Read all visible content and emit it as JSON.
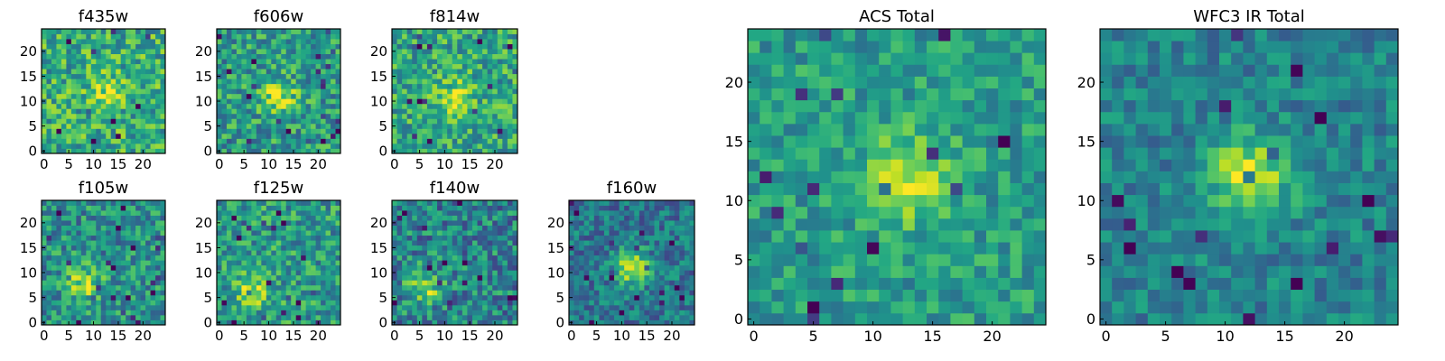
{
  "chart_data": [
    {
      "type": "heatmap",
      "title": "f435w",
      "x_ticks": [
        0,
        5,
        10,
        15,
        20
      ],
      "y_ticks": [
        0,
        5,
        10,
        15,
        20
      ],
      "xlim": [
        0,
        25
      ],
      "ylim": [
        0,
        25
      ],
      "grid_size": 25,
      "blob_center": [
        13,
        12
      ],
      "blob_strength": 0.25,
      "noise": 0.32,
      "background": 0.62,
      "seed": 11
    },
    {
      "type": "heatmap",
      "title": "f606w",
      "x_ticks": [
        0,
        5,
        10,
        15,
        20
      ],
      "y_ticks": [
        0,
        5,
        10,
        15,
        20
      ],
      "xlim": [
        0,
        25
      ],
      "ylim": [
        0,
        25
      ],
      "grid_size": 25,
      "blob_center": [
        12,
        11
      ],
      "blob_strength": 0.35,
      "noise": 0.3,
      "background": 0.55,
      "seed": 22
    },
    {
      "type": "heatmap",
      "title": "f814w",
      "x_ticks": [
        0,
        5,
        10,
        15,
        20
      ],
      "y_ticks": [
        0,
        5,
        10,
        15,
        20
      ],
      "xlim": [
        0,
        25
      ],
      "ylim": [
        0,
        25
      ],
      "grid_size": 25,
      "blob_center": [
        12,
        11
      ],
      "blob_strength": 0.3,
      "noise": 0.3,
      "background": 0.6,
      "seed": 33
    },
    {
      "type": "heatmap",
      "title": "f105w",
      "x_ticks": [
        0,
        5,
        10,
        15,
        20
      ],
      "y_ticks": [
        0,
        5,
        10,
        15,
        20
      ],
      "xlim": [
        0,
        25
      ],
      "ylim": [
        0,
        25
      ],
      "grid_size": 25,
      "blob_center": [
        8,
        8
      ],
      "blob_strength": 0.35,
      "noise": 0.3,
      "background": 0.5,
      "seed": 44
    },
    {
      "type": "heatmap",
      "title": "f125w",
      "x_ticks": [
        0,
        5,
        10,
        15,
        20
      ],
      "y_ticks": [
        0,
        5,
        10,
        15,
        20
      ],
      "xlim": [
        0,
        25
      ],
      "ylim": [
        0,
        25
      ],
      "grid_size": 25,
      "blob_center": [
        7,
        7
      ],
      "blob_strength": 0.35,
      "noise": 0.3,
      "background": 0.55,
      "seed": 55
    },
    {
      "type": "heatmap",
      "title": "f140w",
      "x_ticks": [
        0,
        5,
        10,
        15,
        20
      ],
      "y_ticks": [
        0,
        5,
        10,
        15,
        20
      ],
      "xlim": [
        0,
        25
      ],
      "ylim": [
        0,
        25
      ],
      "grid_size": 25,
      "blob_center": [
        6,
        7
      ],
      "blob_strength": 0.35,
      "noise": 0.32,
      "background": 0.45,
      "seed": 66
    },
    {
      "type": "heatmap",
      "title": "f160w",
      "x_ticks": [
        0,
        5,
        10,
        15,
        20
      ],
      "y_ticks": [
        0,
        5,
        10,
        15,
        20
      ],
      "xlim": [
        0,
        25
      ],
      "ylim": [
        0,
        25
      ],
      "grid_size": 25,
      "blob_center": [
        12,
        11
      ],
      "blob_strength": 0.5,
      "noise": 0.25,
      "background": 0.4,
      "seed": 77
    },
    {
      "type": "heatmap",
      "title": "ACS Total",
      "x_ticks": [
        0,
        5,
        10,
        15,
        20
      ],
      "y_ticks": [
        0,
        5,
        10,
        15,
        20
      ],
      "xlim": [
        0,
        25
      ],
      "ylim": [
        0,
        25
      ],
      "grid_size": 25,
      "blob_center": [
        13,
        12
      ],
      "blob_strength": 0.4,
      "noise": 0.22,
      "background": 0.55,
      "seed": 88
    },
    {
      "type": "heatmap",
      "title": "WFC3 IR Total",
      "x_ticks": [
        0,
        5,
        10,
        15,
        20
      ],
      "y_ticks": [
        0,
        5,
        10,
        15,
        20
      ],
      "xlim": [
        0,
        25
      ],
      "ylim": [
        0,
        25
      ],
      "grid_size": 25,
      "blob_center": [
        12,
        12
      ],
      "blob_strength": 0.45,
      "noise": 0.2,
      "background": 0.45,
      "seed": 99
    }
  ],
  "colormap": "viridis",
  "colors": {
    "low": "#440154",
    "mid": "#21918c",
    "high": "#fde725"
  }
}
